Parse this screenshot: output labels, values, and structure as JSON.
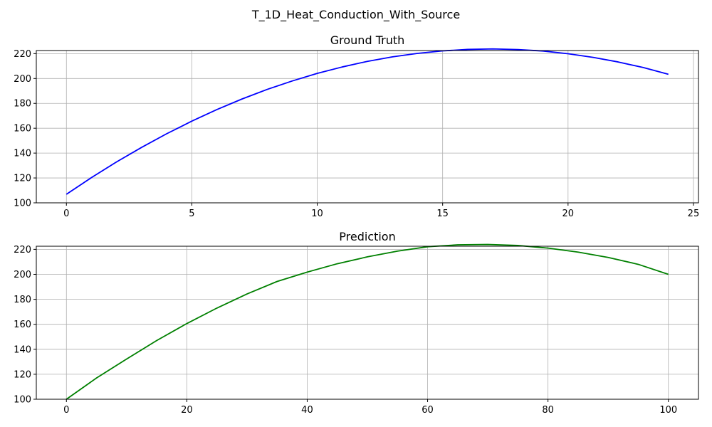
{
  "figure": {
    "suptitle": "T_1D_Heat_Conduction_With_Source"
  },
  "chart_data": [
    {
      "type": "line",
      "title": "Ground Truth",
      "xlabel": "",
      "ylabel": "",
      "xlim": [
        -1.2,
        25.2
      ],
      "ylim": [
        100,
        222.5
      ],
      "xticks": [
        0,
        5,
        10,
        15,
        20,
        25
      ],
      "yticks": [
        100,
        120,
        140,
        160,
        180,
        200,
        220
      ],
      "grid": true,
      "series": [
        {
          "color": "#0000ff",
          "x": [
            0,
            1,
            2,
            3,
            4,
            5,
            6,
            7,
            8,
            9,
            10,
            11,
            12,
            13,
            14,
            15,
            16,
            17,
            18,
            19,
            20,
            21,
            22,
            23,
            24
          ],
          "y": [
            106.9,
            120.3,
            132.9,
            144.6,
            155.6,
            165.7,
            175.0,
            183.5,
            191.2,
            198.0,
            204.1,
            209.3,
            213.8,
            217.4,
            220.2,
            222.2,
            223.4,
            223.8,
            223.3,
            222.1,
            219.9,
            217.0,
            213.3,
            208.8,
            203.4
          ]
        }
      ]
    },
    {
      "type": "line",
      "title": "Prediction",
      "xlabel": "",
      "ylabel": "",
      "xlim": [
        -5,
        105
      ],
      "ylim": [
        100,
        222.5
      ],
      "xticks": [
        0,
        20,
        40,
        60,
        80,
        100
      ],
      "yticks": [
        100,
        120,
        140,
        160,
        180,
        200,
        220
      ],
      "grid": true,
      "series": [
        {
          "color": "#008000",
          "x": [
            0,
            5,
            10,
            15,
            20,
            25,
            30,
            35,
            40,
            45,
            50,
            55,
            60,
            65,
            70,
            75,
            80,
            85,
            90,
            95,
            100
          ],
          "y": [
            100,
            117.0,
            132.2,
            147.0,
            160.6,
            173.0,
            184.3,
            194.3,
            201.8,
            208.5,
            214.0,
            218.6,
            222.1,
            223.6,
            223.9,
            223.1,
            221.0,
            217.8,
            213.5,
            208.0,
            200.0
          ]
        }
      ]
    }
  ]
}
